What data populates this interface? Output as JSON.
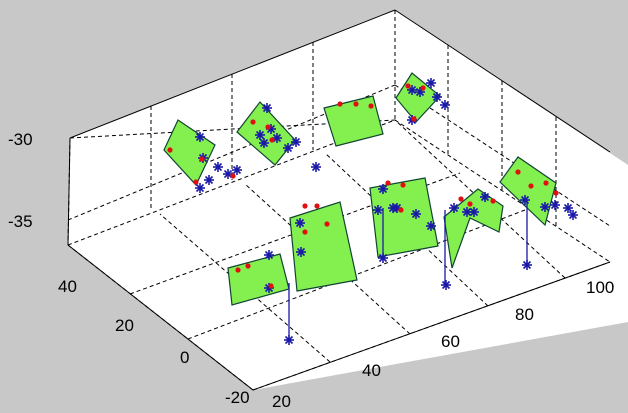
{
  "window": {
    "background": "#c8c8c8"
  },
  "colors": {
    "axes_background": "#ffffff",
    "panel_fill": "#84f050",
    "panel_edge": "#114433",
    "star_marker": "#1a1aa8",
    "dot_marker": "#e01010"
  },
  "chart_data": {
    "type": "3d-surface-panels",
    "title": "",
    "xlabel": "",
    "ylabel": "",
    "zlabel": "",
    "xlim": [
      20,
      100
    ],
    "ylim": [
      -20,
      40
    ],
    "zlim": [
      -38,
      -28
    ],
    "grid": true,
    "x_ticks": [
      "20",
      "40",
      "60",
      "80",
      "100"
    ],
    "y_ticks": [
      "-20",
      "0",
      "20",
      "40"
    ],
    "z_ticks": [
      "-35",
      "-30"
    ],
    "series": [
      {
        "marker": "dot",
        "color": "#e01010"
      },
      {
        "marker": "star",
        "color": "#1a1aa8"
      }
    ]
  }
}
